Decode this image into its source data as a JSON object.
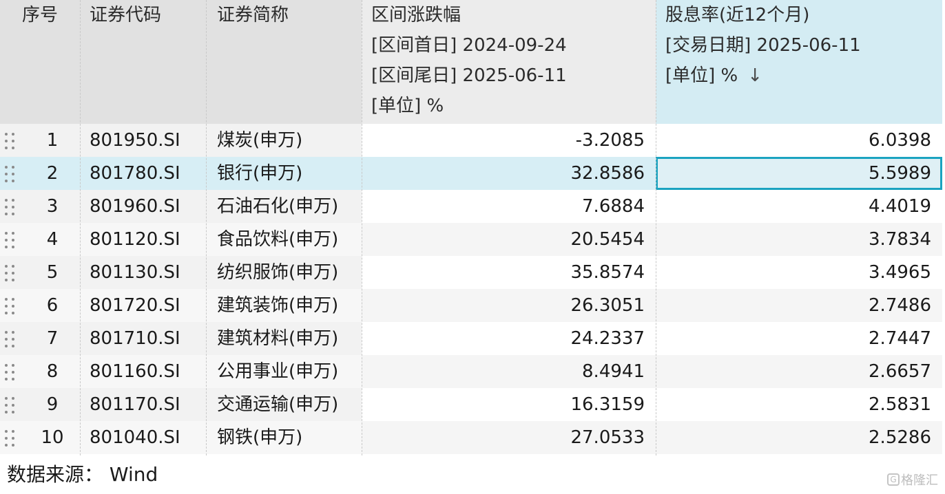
{
  "table": {
    "headers": {
      "seq": "序号",
      "code": "证券代码",
      "name": "证券简称",
      "change": [
        "区间涨跌幅",
        "[区间首日] 2024-09-24",
        "[区间尾日] 2025-06-11",
        "[单位] %"
      ],
      "yield": [
        "股息率(近12个月)",
        "[交易日期] 2025-06-11",
        "[单位] %"
      ],
      "sort_indicator": "↓"
    },
    "rows": [
      {
        "seq": "1",
        "code": "801950.SI",
        "name": "煤炭(申万)",
        "change": "-3.2085",
        "yield": "6.0398"
      },
      {
        "seq": "2",
        "code": "801780.SI",
        "name": "银行(申万)",
        "change": "32.8586",
        "yield": "5.5989"
      },
      {
        "seq": "3",
        "code": "801960.SI",
        "name": "石油石化(申万)",
        "change": "7.6884",
        "yield": "4.4019"
      },
      {
        "seq": "4",
        "code": "801120.SI",
        "name": "食品饮料(申万)",
        "change": "20.5454",
        "yield": "3.7834"
      },
      {
        "seq": "5",
        "code": "801130.SI",
        "name": "纺织服饰(申万)",
        "change": "35.8574",
        "yield": "3.4965"
      },
      {
        "seq": "6",
        "code": "801720.SI",
        "name": "建筑装饰(申万)",
        "change": "26.3051",
        "yield": "2.7486"
      },
      {
        "seq": "7",
        "code": "801710.SI",
        "name": "建筑材料(申万)",
        "change": "24.2337",
        "yield": "2.7447"
      },
      {
        "seq": "8",
        "code": "801160.SI",
        "name": "公用事业(申万)",
        "change": "8.4941",
        "yield": "2.6657"
      },
      {
        "seq": "9",
        "code": "801170.SI",
        "name": "交通运输(申万)",
        "change": "16.3159",
        "yield": "2.5831"
      },
      {
        "seq": "10",
        "code": "801040.SI",
        "name": "钢铁(申万)",
        "change": "27.0533",
        "yield": "2.5286"
      }
    ],
    "selected_row": "2"
  },
  "footer": {
    "source": "数据来源：  Wind"
  },
  "watermark": {
    "text": "格隆汇"
  },
  "colors": {
    "header_gray": "#e1e1e1",
    "header_blue": "#d4ecf3",
    "selection": "#d7eef5",
    "focus_border": "#1aa3c0"
  }
}
